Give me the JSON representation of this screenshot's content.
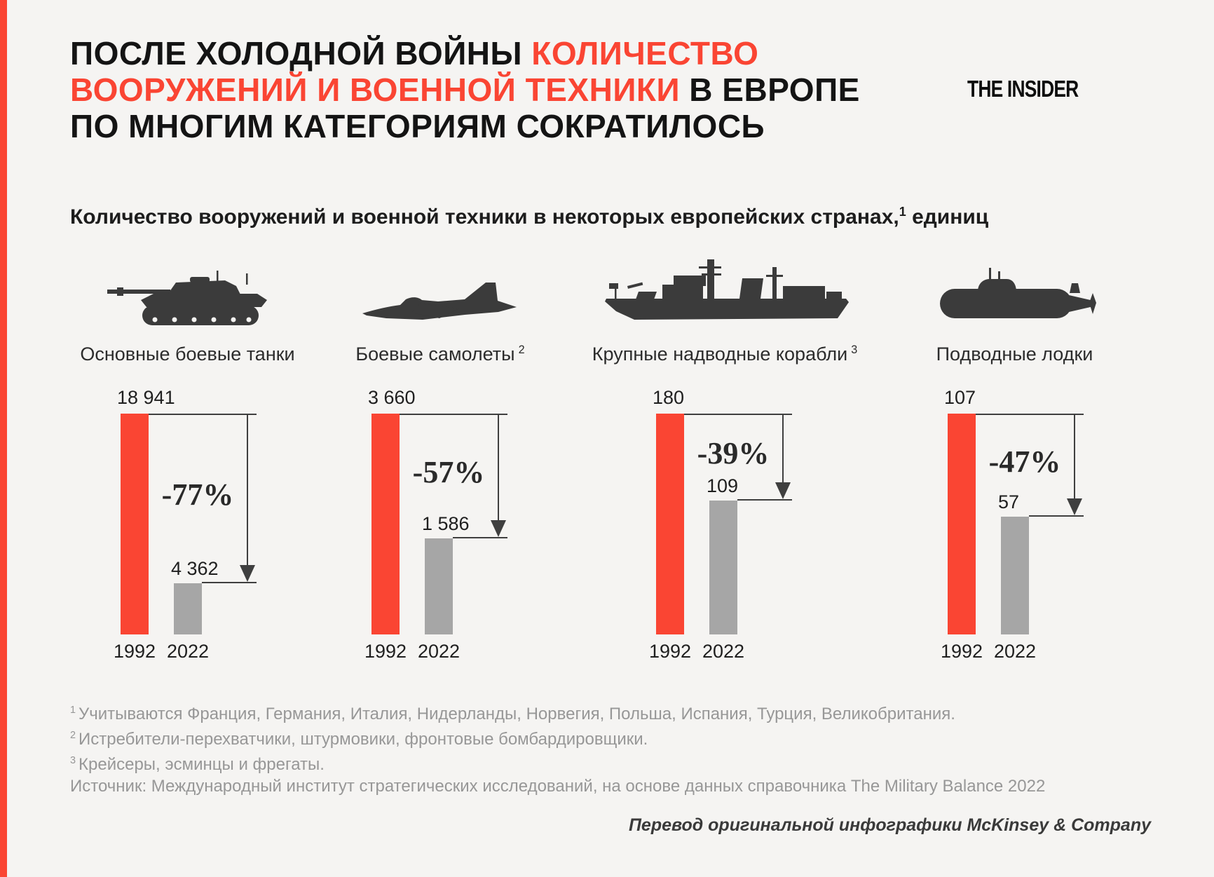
{
  "page": {
    "background": "#f5f4f2",
    "accent_red": "#fa4533",
    "bar_gray_2022": "#a6a6a6",
    "line_color": "#3f3f3f",
    "footnote_gray": "#979797"
  },
  "header": {
    "logo": "THE INSIDER",
    "title_lines": [
      {
        "parts": [
          {
            "text": "ПОСЛЕ ХОЛОДНОЙ ВОЙНЫ ",
            "red": false
          },
          {
            "text": "КОЛИЧЕСТВО",
            "red": true
          }
        ]
      },
      {
        "parts": [
          {
            "text": "ВООРУЖЕНИЙ И ВОЕННОЙ ТЕХНИКИ",
            "red": true
          },
          {
            "text": " В ЕВРОПЕ",
            "red": false
          }
        ]
      },
      {
        "parts": [
          {
            "text": "ПО МНОГИМ КАТЕГОРИЯМ СОКРАТИЛОСЬ",
            "red": false
          }
        ]
      }
    ]
  },
  "subtitle": {
    "before_mark": "Количество вооружений и военной техники в некоторых европейских странах,",
    "mark": "1",
    "after_mark": " единиц"
  },
  "chart_data": {
    "type": "bar",
    "title": "Количество вооружений и военной техники в некоторых европейских странах, единиц",
    "years": [
      "1992",
      "2022"
    ],
    "series_colors": {
      "1992": "#fa4533",
      "2022": "#a6a6a6"
    },
    "legend_position": "none",
    "grid": false,
    "groups": [
      {
        "category": "Основные боевые танки",
        "footnote_mark": "",
        "icon": "tank-icon",
        "values": [
          18941,
          4362
        ],
        "value_labels": [
          "18 941",
          "4 362"
        ],
        "change": "-77%"
      },
      {
        "category": "Боевые самолеты",
        "footnote_mark": "2",
        "icon": "fighter-jet-icon",
        "values": [
          3660,
          1586
        ],
        "value_labels": [
          "3 660",
          "1 586"
        ],
        "change": "-57%"
      },
      {
        "category": "Крупные надводные корабли",
        "footnote_mark": "3",
        "icon": "warship-icon",
        "values": [
          180,
          109
        ],
        "value_labels": [
          "180",
          "109"
        ],
        "change": "-39%"
      },
      {
        "category": "Подводные лодки",
        "footnote_mark": "",
        "icon": "submarine-icon",
        "values": [
          107,
          57
        ],
        "value_labels": [
          "107",
          "57"
        ],
        "change": "-47%"
      }
    ]
  },
  "footnotes": [
    {
      "mark": "1",
      "text": "Учитываются Франция, Германия, Италия, Нидерланды, Норвегия, Польша, Испания, Турция, Великобритания."
    },
    {
      "mark": "2",
      "text": "Истребители-перехватчики, штурмовики, фронтовые бомбардировщики."
    },
    {
      "mark": "3",
      "text": "Крейсеры, эсминцы и фрегаты."
    }
  ],
  "source": "Источник: Международный институт стратегических исследований, на основе данных справочника The Military Balance 2022",
  "credit": "Перевод оригинальной инфографики McKinsey & Company"
}
